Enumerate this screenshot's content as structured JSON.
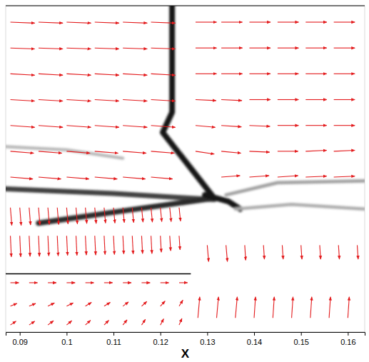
{
  "chart_data": {
    "type": "vector_field",
    "x_label": "X",
    "xlim": [
      0.087,
      0.1636
    ],
    "xticks": [
      0.09,
      0.1,
      0.11,
      0.12,
      0.13,
      0.14,
      0.15,
      0.16
    ],
    "ylim": [
      0,
      0.0695
    ],
    "tick_labels": "x",
    "color": "#e31a1c",
    "wall": {
      "x": [
        0.087,
        0.1265
      ],
      "y": [
        0.0124,
        0.0124
      ]
    },
    "features": [
      {
        "level": 1,
        "points": [
          [
            0.1225,
            0.0695
          ],
          [
            0.1225,
            0.0468
          ],
          [
            0.1205,
            0.0425
          ],
          [
            0.1315,
            0.0285
          ]
        ]
      },
      {
        "level": 0.8,
        "points": [
          [
            0.087,
            0.0305
          ],
          [
            0.11,
            0.0295
          ],
          [
            0.1315,
            0.0282
          ]
        ]
      },
      {
        "level": 0.9,
        "points": [
          [
            0.094,
            0.0232
          ],
          [
            0.112,
            0.0258
          ],
          [
            0.1315,
            0.0285
          ]
        ]
      },
      {
        "level": 1,
        "points": [
          [
            0.1295,
            0.0292
          ],
          [
            0.1345,
            0.0278
          ],
          [
            0.137,
            0.0262
          ]
        ]
      },
      {
        "level": 0.35,
        "points": [
          [
            0.134,
            0.0292
          ],
          [
            0.145,
            0.0318
          ],
          [
            0.1636,
            0.0322
          ]
        ]
      },
      {
        "level": 0.3,
        "points": [
          [
            0.136,
            0.0262
          ],
          [
            0.148,
            0.0272
          ],
          [
            0.1636,
            0.0262
          ]
        ]
      },
      {
        "level": 0.25,
        "points": [
          [
            0.087,
            0.0395
          ],
          [
            0.1,
            0.0388
          ],
          [
            0.112,
            0.037
          ]
        ]
      }
    ],
    "vectors": [
      {
        "y": 0.066,
        "x": [
          0.088,
          0.094,
          0.1,
          0.106,
          0.112,
          0.118,
          0.1275,
          0.133,
          0.139,
          0.145,
          0.151,
          0.157
        ],
        "u": [
          0.0052,
          0.0052,
          0.0052,
          0.0052,
          0.0052,
          0.0052,
          0.0045,
          0.0045,
          0.0045,
          0.0045,
          0.0045,
          0.0045
        ],
        "v": [
          -0.0002,
          -0.0002,
          -0.0002,
          -0.0002,
          -0.0002,
          -0.0002,
          0,
          0,
          0,
          0,
          0,
          0
        ]
      },
      {
        "y": 0.0605,
        "x": [
          0.088,
          0.094,
          0.1,
          0.106,
          0.112,
          0.118,
          0.1275,
          0.133,
          0.139,
          0.145,
          0.151,
          0.157
        ],
        "u": [
          0.0052,
          0.0052,
          0.0052,
          0.0052,
          0.0052,
          0.0052,
          0.0045,
          0.0045,
          0.0045,
          0.0045,
          0.0045,
          0.0045
        ],
        "v": [
          -0.0002,
          -0.0002,
          -0.0002,
          -0.0002,
          -0.0002,
          -0.0002,
          0,
          0,
          0,
          0,
          0,
          0
        ]
      },
      {
        "y": 0.055,
        "x": [
          0.088,
          0.094,
          0.1,
          0.106,
          0.112,
          0.118,
          0.1275,
          0.133,
          0.139,
          0.145,
          0.151,
          0.157
        ],
        "u": [
          0.0052,
          0.0052,
          0.0052,
          0.0052,
          0.0052,
          0.0052,
          0.0045,
          0.0045,
          0.0045,
          0.0045,
          0.0045,
          0.0045
        ],
        "v": [
          -0.0003,
          -0.0003,
          -0.0003,
          -0.0003,
          -0.0003,
          -0.0003,
          0,
          0,
          0,
          0,
          0,
          0
        ]
      },
      {
        "y": 0.0495,
        "x": [
          0.088,
          0.094,
          0.1,
          0.106,
          0.112,
          0.118,
          0.1275,
          0.133,
          0.139,
          0.145,
          0.151,
          0.157
        ],
        "u": [
          0.0052,
          0.0052,
          0.0052,
          0.0052,
          0.0052,
          0.0052,
          0.0044,
          0.0044,
          0.0045,
          0.0045,
          0.0045,
          0.0045
        ],
        "v": [
          -0.0003,
          -0.0003,
          -0.0003,
          -0.0003,
          -0.0003,
          -0.0003,
          -0.0002,
          -0.0002,
          0,
          0,
          0,
          0
        ]
      },
      {
        "y": 0.044,
        "x": [
          0.088,
          0.094,
          0.1,
          0.106,
          0.112,
          0.118,
          0.1275,
          0.133,
          0.139,
          0.145,
          0.151,
          0.157
        ],
        "u": [
          0.0052,
          0.0052,
          0.0052,
          0.0052,
          0.0052,
          0.0052,
          0.0042,
          0.0043,
          0.0044,
          0.0045,
          0.0045,
          0.0045
        ],
        "v": [
          -0.0004,
          -0.0004,
          -0.0004,
          -0.0004,
          -0.0004,
          -0.0004,
          -0.0004,
          -0.0003,
          -0.0002,
          0,
          0,
          0
        ]
      },
      {
        "y": 0.0385,
        "x": [
          0.088,
          0.094,
          0.1,
          0.106,
          0.112,
          0.118,
          0.1275,
          0.133,
          0.139,
          0.145,
          0.151,
          0.157
        ],
        "u": [
          0.005,
          0.005,
          0.005,
          0.005,
          0.005,
          0.005,
          0.004,
          0.0042,
          0.0043,
          0.0044,
          0.0045,
          0.0045
        ],
        "v": [
          -0.0004,
          -0.0004,
          -0.0004,
          -0.0004,
          -0.0004,
          -0.0004,
          -0.0006,
          -0.0004,
          -0.0002,
          0,
          0.0002,
          0.0002
        ]
      },
      {
        "y": 0.033,
        "x": [
          0.088,
          0.094,
          0.1,
          0.106,
          0.112,
          0.118,
          0.133,
          0.139,
          0.145,
          0.151,
          0.157
        ],
        "u": [
          0.0048,
          0.0048,
          0.0048,
          0.0048,
          0.0048,
          0.0046,
          0.004,
          0.0042,
          0.0044,
          0.0045,
          0.0045
        ],
        "v": [
          -0.0004,
          -0.0004,
          -0.0004,
          -0.0004,
          -0.0004,
          -0.0004,
          0.0003,
          0.0003,
          0.0003,
          0.0002,
          0.0002
        ]
      },
      {
        "y": 0.0265,
        "x": [
          0.088,
          0.09,
          0.092,
          0.094,
          0.096,
          0.098,
          0.1,
          0.102,
          0.104,
          0.106,
          0.108,
          0.11,
          0.112,
          0.114,
          0.116,
          0.118,
          0.12,
          0.122,
          0.124
        ],
        "u": [
          0.0003,
          0.0003,
          0.0003,
          0.0003,
          0.0003,
          0.0003,
          0.0003,
          0.0003,
          0.0003,
          0.0003,
          0.0003,
          0.0003,
          0.0003,
          0.0003,
          0.0003,
          0.0003,
          0.0003,
          0.0003,
          0.0003
        ],
        "v": [
          -0.0038,
          -0.0038,
          -0.0037,
          -0.0037,
          -0.0036,
          -0.0036,
          -0.0035,
          -0.0035,
          -0.0034,
          -0.0034,
          -0.0033,
          -0.0033,
          -0.0032,
          -0.0032,
          -0.0031,
          -0.0031,
          -0.003,
          -0.003,
          -0.0029
        ]
      },
      {
        "y": 0.0205,
        "x": [
          0.088,
          0.09,
          0.092,
          0.094,
          0.096,
          0.098,
          0.1,
          0.102,
          0.104,
          0.106,
          0.108,
          0.11,
          0.112,
          0.114,
          0.116,
          0.118,
          0.12,
          0.122,
          0.124
        ],
        "u": [
          0.0002,
          0.0002,
          0.0002,
          0.0002,
          0.0002,
          0.0002,
          0.0002,
          0.0002,
          0.0002,
          0.0002,
          0.0002,
          0.0002,
          0.0002,
          0.0002,
          0.0002,
          0.0002,
          0.0002,
          0.0002,
          0.0002
        ],
        "v": [
          -0.0045,
          -0.0045,
          -0.0044,
          -0.0044,
          -0.0043,
          -0.0043,
          -0.0042,
          -0.0042,
          -0.0041,
          -0.0041,
          -0.004,
          -0.004,
          -0.0039,
          -0.0039,
          -0.0038,
          -0.0038,
          -0.0035,
          -0.0032,
          -0.003
        ]
      },
      {
        "y": 0.0105,
        "x": [
          0.088,
          0.092,
          0.096,
          0.1,
          0.104,
          0.108,
          0.112,
          0.116,
          0.12,
          0.124
        ],
        "u": [
          0.0018,
          0.0018,
          0.0018,
          0.0018,
          0.0018,
          0.0018,
          0.0018,
          0.0018,
          0.0018,
          0.0018
        ],
        "v": [
          0,
          0,
          0,
          0,
          0,
          0,
          0,
          0,
          0,
          0
        ]
      },
      {
        "y": 0.0055,
        "x": [
          0.088,
          0.092,
          0.096,
          0.1,
          0.104,
          0.108,
          0.112,
          0.116,
          0.12,
          0.124
        ],
        "u": [
          0.0014,
          0.0014,
          0.0014,
          0.0014,
          0.0013,
          0.0013,
          0.0012,
          0.0011,
          0.001,
          0.0008
        ],
        "v": [
          0.0006,
          0.0006,
          0.0007,
          0.0007,
          0.0008,
          0.0008,
          0.0009,
          0.001,
          0.0011,
          0.0013
        ]
      },
      {
        "y": 0.0015,
        "x": [
          0.088,
          0.092,
          0.096,
          0.1,
          0.104,
          0.108,
          0.112,
          0.116,
          0.12,
          0.124
        ],
        "u": [
          0.0012,
          0.0012,
          0.0012,
          0.0011,
          0.0011,
          0.001,
          0.0009,
          0.0008,
          0.0007,
          0.0006
        ],
        "v": [
          0.0008,
          0.0008,
          0.0009,
          0.0009,
          0.001,
          0.001,
          0.0011,
          0.0012,
          0.0013,
          0.0014
        ]
      },
      {
        "y": 0.0185,
        "x": [
          0.13,
          0.134,
          0.138,
          0.142,
          0.146,
          0.15,
          0.154,
          0.158,
          0.162
        ],
        "u": [
          0.0003,
          0.0003,
          0.0002,
          0.0002,
          0.0002,
          0.0002,
          0.0002,
          0.0002,
          0.0002
        ],
        "v": [
          -0.0035,
          -0.0035,
          -0.0032,
          -0.003,
          -0.003,
          -0.003,
          -0.003,
          -0.003,
          -0.003
        ]
      },
      {
        "y": 0.003,
        "x": [
          0.128,
          0.132,
          0.136,
          0.14,
          0.144,
          0.148,
          0.152,
          0.156,
          0.16
        ],
        "u": [
          0.0004,
          0.0004,
          0.0004,
          0.0003,
          0.0003,
          0.0003,
          0.0003,
          0.0003,
          0.0003
        ],
        "v": [
          0.0045,
          0.0045,
          0.0045,
          0.0045,
          0.0045,
          0.0045,
          0.0045,
          0.0045,
          0.0045
        ]
      }
    ]
  }
}
